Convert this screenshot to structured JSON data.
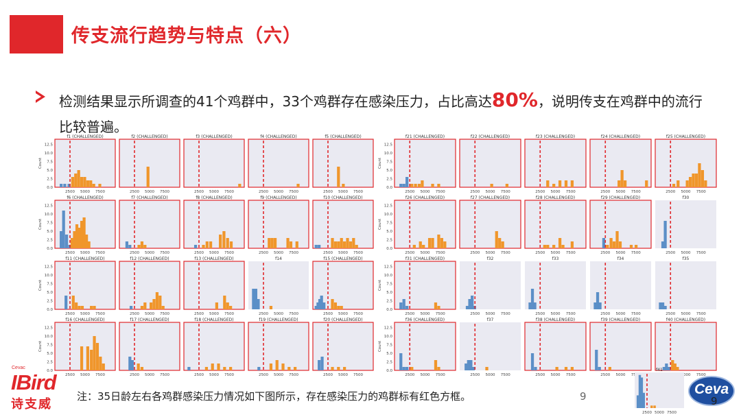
{
  "title": "传支流行趋势与特点（六）",
  "body_pre": "检测结果显示所调查的41个鸡群中，33个鸡群存在感染压力，占比高达",
  "body_highlight": "80%",
  "body_post": "，说明传支在鸡群中的流行比较普遍。",
  "note": "注：35日龄左右各鸡群感染压力情况如下图所示，存在感染压力的鸡群标有红色方框。",
  "page_number": "9",
  "logo": {
    "small": "Cevac",
    "big": "IBird",
    "cn": "诗支威"
  },
  "ceva": {
    "text": "Ceva",
    "num": "9"
  },
  "colors": {
    "accent": "#e0272b",
    "blue": "#5b8fc7",
    "orange": "#f0962b",
    "panel_bg": "#eaeaf2",
    "cutoff": "#e0272b"
  },
  "chart_data": {
    "type": "histogram-grid",
    "cutoff": 2500,
    "xticks": [
      2500,
      5000,
      7500
    ],
    "yticks": [
      0,
      2.5,
      5.0,
      7.5,
      10.0,
      12.5
    ],
    "ylabel": "Count",
    "panels": [
      {
        "title": "f1 (CHALLENGED)",
        "challenged": true,
        "blue": [
          [
            800,
            1
          ],
          [
            1400,
            1
          ],
          [
            2100,
            1
          ]
        ],
        "orange": [
          [
            2700,
            3
          ],
          [
            3200,
            4
          ],
          [
            3700,
            5
          ],
          [
            4200,
            3
          ],
          [
            4700,
            3
          ],
          [
            5200,
            2
          ],
          [
            5700,
            2
          ],
          [
            6200,
            1
          ],
          [
            7200,
            1
          ]
        ]
      },
      {
        "title": "f2 (CHALLENGED)",
        "challenged": true,
        "blue": [],
        "orange": [
          [
            4500,
            6
          ]
        ]
      },
      {
        "title": "f3 (CHALLENGED)",
        "challenged": true,
        "blue": [],
        "orange": [
          [
            9000,
            1
          ]
        ]
      },
      {
        "title": "f4 (CHALLENGED)",
        "challenged": true,
        "blue": [],
        "orange": [
          [
            8000,
            1
          ]
        ]
      },
      {
        "title": "f5 (CHALLENGED)",
        "challenged": true,
        "blue": [],
        "orange": [
          [
            4000,
            6
          ],
          [
            4800,
            1
          ]
        ]
      },
      {
        "title": "f6 (CHALLENGED)",
        "challenged": true,
        "blue": [
          [
            800,
            5
          ],
          [
            1200,
            11
          ],
          [
            1700,
            4
          ],
          [
            2200,
            1
          ]
        ],
        "orange": [
          [
            2600,
            3
          ],
          [
            3000,
            5
          ],
          [
            3400,
            7
          ],
          [
            3800,
            6
          ],
          [
            4200,
            8
          ],
          [
            4600,
            9
          ],
          [
            5000,
            4
          ],
          [
            5400,
            2
          ]
        ]
      },
      {
        "title": "f7 (CHALLENGED)",
        "challenged": true,
        "blue": [
          [
            1000,
            2
          ],
          [
            1500,
            1
          ]
        ],
        "orange": [
          [
            3000,
            1
          ],
          [
            3500,
            2
          ],
          [
            4000,
            1
          ]
        ]
      },
      {
        "title": "f8 (CHALLENGED)",
        "challenged": true,
        "blue": [
          [
            1700,
            1
          ]
        ],
        "orange": [
          [
            3000,
            1
          ],
          [
            3600,
            2
          ],
          [
            4200,
            2
          ],
          [
            5800,
            4
          ],
          [
            6400,
            5
          ],
          [
            7000,
            3
          ],
          [
            7600,
            2
          ]
        ]
      },
      {
        "title": "f9 (CHALLENGED)",
        "challenged": true,
        "blue": [],
        "orange": [
          [
            3200,
            3
          ],
          [
            3700,
            3
          ],
          [
            4200,
            3
          ],
          [
            6300,
            3
          ],
          [
            6800,
            2
          ],
          [
            7800,
            2
          ]
        ]
      },
      {
        "title": "f10 (CHALLENGED)",
        "challenged": true,
        "blue": [
          [
            300,
            1
          ],
          [
            800,
            1
          ]
        ],
        "orange": [
          [
            3000,
            3
          ],
          [
            3500,
            2
          ],
          [
            4000,
            2
          ],
          [
            4500,
            3
          ],
          [
            5000,
            2
          ],
          [
            5500,
            3
          ],
          [
            6000,
            2
          ],
          [
            6500,
            3
          ],
          [
            7000,
            1
          ]
        ]
      },
      {
        "title": "f11 (CHALLENGED)",
        "challenged": true,
        "blue": [
          [
            1600,
            4
          ]
        ],
        "orange": [
          [
            2800,
            4
          ],
          [
            3300,
            2
          ],
          [
            3800,
            1
          ],
          [
            4300,
            1
          ],
          [
            5800,
            1
          ],
          [
            6300,
            1
          ]
        ]
      },
      {
        "title": "f12 (CHALLENGED)",
        "challenged": true,
        "blue": [
          [
            1700,
            1
          ]
        ],
        "orange": [
          [
            3500,
            1
          ],
          [
            4000,
            2
          ],
          [
            5000,
            2
          ],
          [
            5500,
            3
          ],
          [
            6000,
            5
          ],
          [
            6500,
            4
          ],
          [
            7000,
            1
          ]
        ]
      },
      {
        "title": "f13 (CHALLENGED)",
        "challenged": true,
        "blue": [],
        "orange": [
          [
            5200,
            2
          ],
          [
            6500,
            4
          ],
          [
            7000,
            2
          ],
          [
            7500,
            1
          ]
        ]
      },
      {
        "title": "f14",
        "challenged": false,
        "blue": [
          [
            600,
            6
          ],
          [
            1000,
            6
          ],
          [
            1400,
            3
          ]
        ],
        "orange": [
          [
            3500,
            1
          ]
        ]
      },
      {
        "title": "f15 (CHALLENGED)",
        "challenged": true,
        "blue": [
          [
            300,
            1
          ],
          [
            600,
            2
          ],
          [
            900,
            3
          ],
          [
            1200,
            4
          ],
          [
            1600,
            2
          ]
        ],
        "orange": [
          [
            3000,
            3
          ],
          [
            3500,
            2
          ],
          [
            4000,
            1
          ],
          [
            4500,
            1
          ]
        ]
      },
      {
        "title": "f16 (CHALLENGED)",
        "challenged": true,
        "blue": [],
        "orange": [
          [
            4200,
            7
          ],
          [
            5200,
            7
          ],
          [
            5800,
            6
          ],
          [
            6300,
            10
          ],
          [
            6800,
            8
          ],
          [
            7300,
            4
          ],
          [
            7800,
            2
          ]
        ]
      },
      {
        "title": "f17 (CHALLENGED)",
        "challenged": true,
        "blue": [
          [
            1500,
            4
          ],
          [
            1900,
            3
          ]
        ],
        "orange": [
          [
            2900,
            2
          ],
          [
            3500,
            1
          ]
        ]
      },
      {
        "title": "f18 (CHALLENGED)",
        "challenged": true,
        "blue": [
          [
            600,
            1
          ]
        ],
        "orange": [
          [
            3500,
            1
          ],
          [
            4500,
            2
          ],
          [
            5500,
            2
          ],
          [
            6500,
            1
          ],
          [
            7500,
            1
          ]
        ]
      },
      {
        "title": "f19 (CHALLENGED)",
        "challenged": true,
        "blue": [
          [
            1500,
            1
          ]
        ],
        "orange": [
          [
            3500,
            2
          ],
          [
            4500,
            3
          ],
          [
            5500,
            2
          ],
          [
            6500,
            1
          ],
          [
            7500,
            1
          ]
        ]
      },
      {
        "title": "f20 (CHALLENGED)",
        "challenged": true,
        "blue": [
          [
            800,
            3
          ],
          [
            1300,
            4
          ]
        ],
        "orange": [
          [
            3000,
            1
          ],
          [
            4000,
            1
          ],
          [
            5000,
            1
          ]
        ]
      },
      {
        "title": "f21 (CHALLENGED)",
        "challenged": true,
        "blue": [
          [
            800,
            1
          ],
          [
            1300,
            1
          ],
          [
            1800,
            3
          ]
        ],
        "orange": [
          [
            2600,
            1
          ],
          [
            3200,
            1
          ],
          [
            3800,
            1
          ],
          [
            4300,
            2
          ],
          [
            6000,
            1
          ],
          [
            7000,
            1
          ]
        ]
      },
      {
        "title": "f22 (CHALLENGED)",
        "challenged": true,
        "blue": [],
        "orange": [
          [
            5000,
            1
          ],
          [
            7500,
            1
          ]
        ]
      },
      {
        "title": "f23 (CHALLENGED)",
        "challenged": true,
        "blue": [],
        "orange": [
          [
            3500,
            2
          ],
          [
            4500,
            1
          ],
          [
            5500,
            2
          ],
          [
            6500,
            2
          ],
          [
            7500,
            2
          ]
        ]
      },
      {
        "title": "f24 (CHALLENGED)",
        "challenged": true,
        "blue": [],
        "orange": [
          [
            4500,
            2
          ],
          [
            5000,
            5
          ],
          [
            5500,
            2
          ],
          [
            9000,
            2
          ]
        ]
      },
      {
        "title": "f25 (CHALLENGED)",
        "challenged": true,
        "blue": [],
        "orange": [
          [
            2800,
            1
          ],
          [
            3500,
            2
          ],
          [
            5000,
            2
          ],
          [
            5500,
            3
          ],
          [
            6000,
            4
          ],
          [
            6500,
            4
          ],
          [
            7000,
            7
          ],
          [
            7500,
            5
          ],
          [
            8000,
            2
          ]
        ]
      },
      {
        "title": "f26 (CHALLENGED)",
        "challenged": true,
        "blue": [],
        "orange": [
          [
            3000,
            1
          ],
          [
            4000,
            2
          ],
          [
            4500,
            1
          ],
          [
            5500,
            3
          ],
          [
            6000,
            3
          ],
          [
            7000,
            4
          ],
          [
            7500,
            3
          ],
          [
            8000,
            2
          ]
        ]
      },
      {
        "title": "f27 (CHALLENGED)",
        "challenged": true,
        "blue": [],
        "orange": [
          [
            5800,
            5
          ],
          [
            6300,
            3
          ],
          [
            6800,
            2
          ]
        ]
      },
      {
        "title": "f28 (CHALLENGED)",
        "challenged": true,
        "blue": [],
        "orange": [
          [
            3000,
            1
          ],
          [
            3500,
            1
          ],
          [
            4500,
            1
          ],
          [
            5500,
            3
          ],
          [
            6000,
            1
          ],
          [
            7500,
            2
          ]
        ]
      },
      {
        "title": "f29 (CHALLENGED)",
        "challenged": true,
        "blue": [
          [
            2000,
            3
          ]
        ],
        "orange": [
          [
            2600,
            1
          ],
          [
            3200,
            3
          ],
          [
            3700,
            2
          ],
          [
            4200,
            5
          ],
          [
            4700,
            2
          ],
          [
            6500,
            1
          ],
          [
            7300,
            1
          ]
        ]
      },
      {
        "title": "f30",
        "challenged": false,
        "blue": [
          [
            1000,
            2
          ],
          [
            1400,
            8
          ]
        ],
        "orange": []
      },
      {
        "title": "f31 (CHALLENGED)",
        "challenged": true,
        "blue": [
          [
            800,
            2
          ],
          [
            1300,
            3
          ],
          [
            1800,
            1
          ]
        ],
        "orange": [
          [
            6500,
            2
          ],
          [
            7000,
            1
          ]
        ]
      },
      {
        "title": "f32",
        "challenged": false,
        "blue": [
          [
            1000,
            1
          ],
          [
            1400,
            3
          ],
          [
            1800,
            4
          ],
          [
            2200,
            1
          ]
        ],
        "orange": []
      },
      {
        "title": "f33",
        "challenged": false,
        "blue": [
          [
            600,
            2
          ],
          [
            1000,
            6
          ],
          [
            1400,
            2
          ]
        ],
        "orange": []
      },
      {
        "title": "f34",
        "challenged": false,
        "blue": [
          [
            600,
            2
          ],
          [
            1000,
            5
          ],
          [
            1400,
            2
          ]
        ],
        "orange": []
      },
      {
        "title": "f35",
        "challenged": false,
        "blue": [
          [
            600,
            2
          ],
          [
            1000,
            2
          ],
          [
            1400,
            1
          ]
        ],
        "orange": []
      },
      {
        "title": "f36 (CHALLENGED)",
        "challenged": true,
        "blue": [
          [
            800,
            5
          ],
          [
            1300,
            1
          ],
          [
            1800,
            1
          ]
        ],
        "orange": [
          [
            2600,
            1
          ],
          [
            6500,
            3
          ],
          [
            7000,
            1
          ]
        ]
      },
      {
        "title": "f37",
        "challenged": false,
        "blue": [
          [
            800,
            2
          ],
          [
            1200,
            3
          ],
          [
            1600,
            3
          ],
          [
            2000,
            1
          ]
        ],
        "orange": [
          [
            4200,
            1
          ]
        ]
      },
      {
        "title": "f38 (CHALLENGED)",
        "challenged": true,
        "blue": [
          [
            1000,
            5
          ],
          [
            1500,
            1
          ]
        ],
        "orange": [
          [
            5000,
            1
          ],
          [
            6500,
            1
          ],
          [
            7500,
            1
          ]
        ]
      },
      {
        "title": "f39 (CHALLENGED)",
        "challenged": true,
        "blue": [
          [
            800,
            6
          ],
          [
            1300,
            1
          ]
        ],
        "orange": [
          [
            3000,
            1
          ]
        ]
      },
      {
        "title": "f40 (CHALLENGED)",
        "challenged": true,
        "blue": [
          [
            1200,
            1
          ],
          [
            1600,
            2
          ],
          [
            2000,
            1
          ]
        ],
        "orange": [
          [
            2600,
            3
          ],
          [
            3000,
            2
          ],
          [
            3400,
            1
          ]
        ]
      }
    ],
    "extra_panel": {
      "title": "f41",
      "blue": [
        [
          400,
          5
        ],
        [
          800,
          13
        ],
        [
          1200,
          12
        ],
        [
          1600,
          6
        ]
      ],
      "orange": [
        [
          3200,
          1
        ],
        [
          3800,
          1
        ]
      ]
    }
  }
}
